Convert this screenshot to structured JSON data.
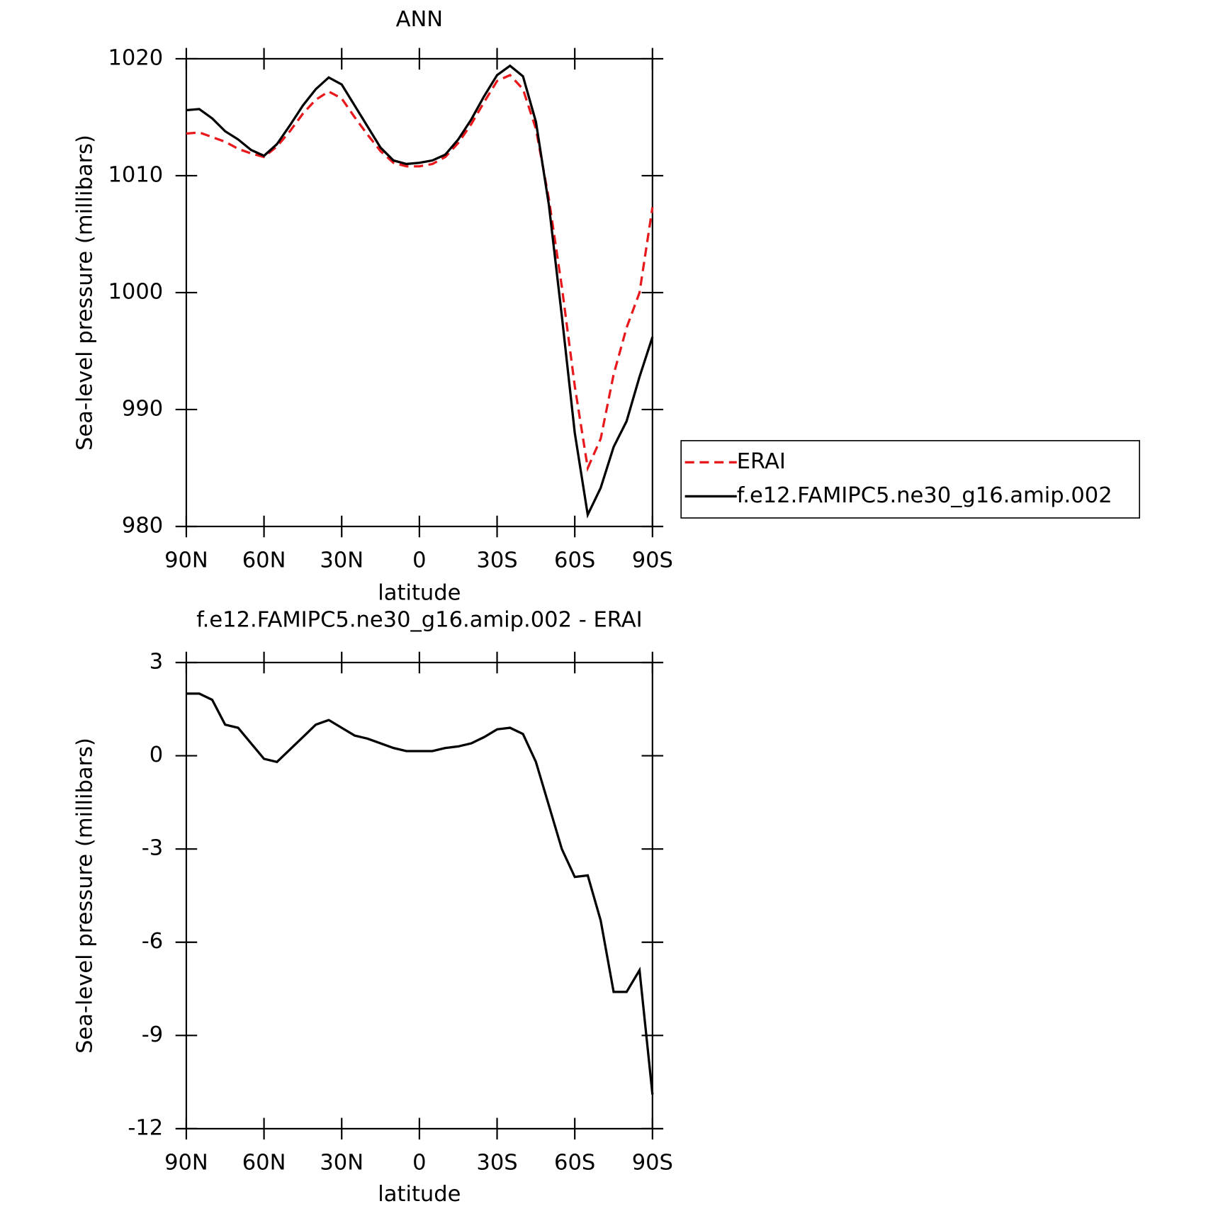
{
  "chart_data": [
    {
      "type": "line",
      "title": "ANN",
      "ylabel": "Sea-level pressure (millibars)",
      "xlabel": "latitude",
      "x": [
        90,
        85,
        80,
        75,
        70,
        65,
        60,
        55,
        50,
        45,
        40,
        35,
        30,
        25,
        20,
        15,
        10,
        5,
        0,
        -5,
        -10,
        -15,
        -20,
        -25,
        -30,
        -35,
        -40,
        -45,
        -50,
        -55,
        -60,
        -65,
        -70,
        -75,
        -80,
        -85,
        -90
      ],
      "xlim": [
        90,
        -90
      ],
      "xticks": [
        {
          "value": 90,
          "label": "90N"
        },
        {
          "value": 60,
          "label": "60N"
        },
        {
          "value": 30,
          "label": "30N"
        },
        0,
        {
          "value": -30,
          "label": "30S"
        },
        {
          "value": -60,
          "label": "60S"
        },
        {
          "value": -90,
          "label": "90S"
        }
      ],
      "ylim": [
        980,
        1020
      ],
      "yticks": [
        980,
        990,
        1000,
        1010,
        1020
      ],
      "series": [
        {
          "name": "ERAI",
          "color": "#e8191c",
          "dash": true,
          "values": [
            1013.6,
            1013.7,
            1013.3,
            1012.9,
            1012.3,
            1011.9,
            1011.6,
            1012.5,
            1013.8,
            1015.3,
            1016.5,
            1017.2,
            1016.6,
            1015.0,
            1013.5,
            1012.1,
            1011.1,
            1010.8,
            1010.8,
            1011.0,
            1011.6,
            1012.8,
            1014.4,
            1016.3,
            1018.1,
            1018.6,
            1017.4,
            1014.0,
            1008.0,
            1000.5,
            992.0,
            985.0,
            987.5,
            993.0,
            997.0,
            1000.0,
            1007.3
          ]
        },
        {
          "name": "f.e12.FAMIPC5.ne30_g16.amip.002",
          "color": "#000000",
          "dash": false,
          "values": [
            1015.6,
            1015.7,
            1014.9,
            1013.8,
            1013.1,
            1012.2,
            1011.7,
            1012.7,
            1014.3,
            1016.0,
            1017.4,
            1018.4,
            1017.8,
            1016.0,
            1014.2,
            1012.4,
            1011.3,
            1011.0,
            1011.1,
            1011.3,
            1011.8,
            1013.1,
            1014.8,
            1016.8,
            1018.6,
            1019.4,
            1018.5,
            1014.6,
            1007.5,
            998.0,
            988.0,
            981.0,
            983.3,
            986.8,
            989.0,
            992.8,
            996.2
          ]
        }
      ]
    },
    {
      "type": "line",
      "title": "f.e12.FAMIPC5.ne30_g16.amip.002 - ERAI",
      "ylabel": "Sea-level pressure (millibars)",
      "xlabel": "latitude",
      "x": [
        90,
        85,
        80,
        75,
        70,
        65,
        60,
        55,
        50,
        45,
        40,
        35,
        30,
        25,
        20,
        15,
        10,
        5,
        0,
        -5,
        -10,
        -15,
        -20,
        -25,
        -30,
        -35,
        -40,
        -45,
        -50,
        -55,
        -60,
        -65,
        -70,
        -75,
        -80,
        -85,
        -90
      ],
      "xlim": [
        90,
        -90
      ],
      "xticks": [
        {
          "value": 90,
          "label": "90N"
        },
        {
          "value": 60,
          "label": "60N"
        },
        {
          "value": 30,
          "label": "30N"
        },
        0,
        {
          "value": -30,
          "label": "30S"
        },
        {
          "value": -60,
          "label": "60S"
        },
        {
          "value": -90,
          "label": "90S"
        }
      ],
      "ylim": [
        -12,
        3
      ],
      "yticks": [
        -12,
        -9,
        -6,
        -3,
        0,
        3
      ],
      "series": [
        {
          "color": "#000000",
          "dash": false,
          "values": [
            2.0,
            2.0,
            1.8,
            1.0,
            0.9,
            0.4,
            -0.1,
            -0.2,
            0.2,
            0.6,
            1.0,
            1.15,
            0.9,
            0.65,
            0.55,
            0.4,
            0.25,
            0.15,
            0.15,
            0.15,
            0.25,
            0.3,
            0.4,
            0.6,
            0.85,
            0.9,
            0.7,
            -0.2,
            -1.6,
            -3.0,
            -3.9,
            -3.85,
            -5.3,
            -7.6,
            -7.6,
            -6.9,
            -10.9
          ]
        }
      ]
    }
  ]
}
